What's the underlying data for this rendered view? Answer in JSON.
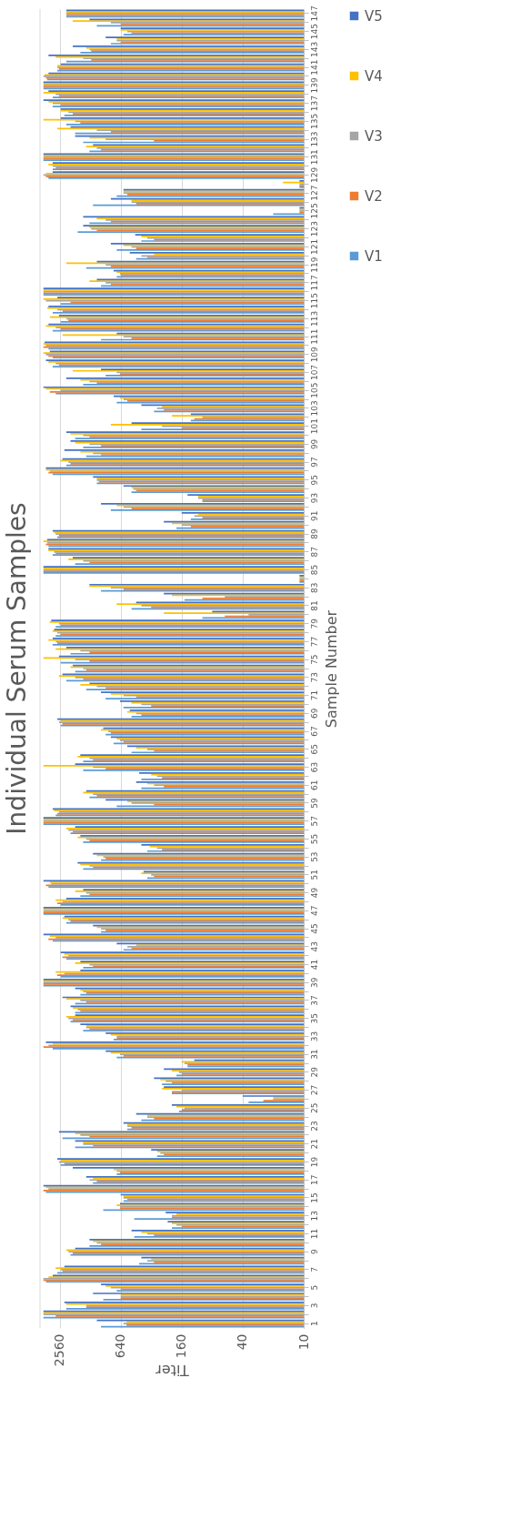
{
  "chart_data": {
    "type": "bar",
    "orientation": "horizontal",
    "title": "Individual Serum Samples",
    "xlabel": "Titer",
    "ylabel": "Sample Number",
    "categories": [
      "147",
      null,
      "145",
      null,
      "143",
      null,
      "141",
      null,
      "139",
      null,
      "137",
      null,
      "135",
      null,
      "133",
      null,
      "131",
      null,
      "129",
      null,
      "127",
      null,
      "125",
      null,
      "123",
      null,
      "121",
      null,
      "119",
      null,
      "117",
      null,
      "115",
      null,
      "113",
      null,
      "111",
      null,
      "109",
      null,
      "107",
      null,
      "105",
      null,
      "103",
      null,
      "101",
      null,
      "99",
      null,
      "97",
      null,
      "95",
      null,
      "93",
      null,
      "91",
      null,
      "89",
      null,
      "87",
      null,
      "85",
      null,
      "83",
      null,
      "81",
      null,
      "79",
      null,
      "77",
      null,
      "75",
      null,
      "73",
      null,
      "71",
      null,
      "69",
      null,
      "67",
      null,
      "65",
      null,
      "63",
      null,
      "61",
      null,
      "59",
      null,
      "57",
      null,
      "55",
      null,
      "53",
      null,
      "51",
      null,
      "49",
      null,
      "47",
      null,
      "45",
      null,
      "43",
      null,
      "41",
      null,
      "39",
      null,
      "37",
      null,
      "35",
      null,
      "33",
      null,
      "31",
      null,
      "29",
      null,
      "27",
      null,
      "25",
      null,
      "23",
      null,
      "21",
      null,
      "19",
      null,
      "17",
      null,
      "15",
      null,
      "13",
      null,
      "11",
      null,
      "9",
      null,
      "7",
      null,
      "5",
      null,
      "3",
      null,
      "1"
    ],
    "series": [
      {
        "name": "V1",
        "color": "#5b9bd5",
        "values": [
          2200,
          1100,
          600,
          800,
          1600,
          2200,
          2700,
          3400,
          3700,
          3000,
          3000,
          2300,
          2200,
          1800,
          1500,
          1300,
          3700,
          3000,
          3300,
          11,
          700,
          1200,
          20,
          1300,
          1700,
          400,
          700,
          450,
          1400,
          700,
          1000,
          3700,
          2500,
          3000,
          2500,
          3000,
          1000,
          3300,
          3000,
          3000,
          900,
          1500,
          2800,
          700,
          300,
          130,
          400,
          1800,
          1500,
          1400,
          2200,
          3000,
          1100,
          500,
          100,
          800,
          130,
          180,
          2700,
          3300,
          3000,
          1800,
          3700,
          11,
          1000,
          150,
          500,
          100,
          2800,
          2800,
          3000,
          2000,
          2500,
          1800,
          2200,
          1400,
          900,
          600,
          500,
          2500,
          900,
          750,
          500,
          1500,
          1500,
          400,
          400,
          1300,
          700,
          2800,
          3700,
          2000,
          1500,
          350,
          1000,
          1500,
          350,
          3300,
          1600,
          2500,
          3700,
          2200,
          1000,
          3000,
          600,
          2200,
          1500,
          2500,
          3700,
          1600,
          1800,
          1800,
          2000,
          1500,
          750,
          3000,
          700,
          140,
          180,
          250,
          200,
          35,
          170,
          400,
          550,
          2400,
          1800,
          280,
          2500,
          700,
          1200,
          3500,
          600,
          950,
          470,
          200,
          470,
          1300,
          2000,
          420,
          2700,
          3500,
          700,
          950,
          2200,
          3700,
          1000
        ]
      },
      {
        "name": "V2",
        "color": "#ed7d31",
        "values": [
          2200,
          640,
          500,
          640,
          1250,
          1250,
          2600,
          3500,
          3700,
          2600,
          2500,
          1900,
          1600,
          800,
          300,
          1000,
          3700,
          2800,
          3500,
          11,
          550,
          450,
          11,
          800,
          1100,
          300,
          450,
          350,
          800,
          640,
          800,
          3700,
          2000,
          2400,
          2100,
          2500,
          500,
          3700,
          3300,
          2600,
          650,
          1100,
          3200,
          550,
          240,
          120,
          160,
          1300,
          1000,
          1000,
          2000,
          3300,
          1050,
          450,
          100,
          500,
          100,
          130,
          2600,
          3500,
          2800,
          1300,
          3700,
          11,
          600,
          100,
          320,
          60,
          2500,
          2500,
          2700,
          1300,
          1300,
          1400,
          1500,
          900,
          450,
          320,
          400,
          2400,
          800,
          600,
          300,
          1200,
          900,
          250,
          240,
          1100,
          300,
          2700,
          3700,
          1900,
          1300,
          250,
          900,
          1200,
          300,
          3500,
          1300,
          2700,
          3700,
          2000,
          900,
          3300,
          500,
          2400,
          1200,
          2700,
          3700,
          1400,
          1400,
          1600,
          1900,
          1300,
          700,
          3700,
          600,
          140,
          160,
          200,
          200,
          25,
          160,
          300,
          500,
          1300,
          1200,
          240,
          2300,
          650,
          1100,
          3700,
          550,
          650,
          200,
          160,
          300,
          1000,
          1900,
          300,
          2400,
          3700,
          640,
          640,
          1400,
          2800,
          560
        ]
      },
      {
        "name": "V3",
        "color": "#a5a5a5",
        "values": [
          2200,
          800,
          550,
          700,
          1300,
          1500,
          2700,
          3700,
          3700,
          2800,
          3000,
          2100,
          1800,
          1100,
          900,
          1100,
          3700,
          3000,
          3700,
          11,
          600,
          500,
          11,
          900,
          1250,
          350,
          500,
          400,
          900,
          650,
          900,
          3700,
          3500,
          2700,
          2200,
          2800,
          600,
          3500,
          3500,
          2800,
          700,
          1300,
          2500,
          600,
          280,
          100,
          250,
          1500,
          1300,
          1200,
          2100,
          3200,
          1100,
          480,
          110,
          600,
          120,
          160,
          2800,
          3400,
          2900,
          1500,
          3700,
          11,
          800,
          60,
          400,
          35,
          2600,
          2700,
          2800,
          1600,
          1800,
          1500,
          1800,
          1100,
          600,
          400,
          450,
          2600,
          850,
          650,
          350,
          1300,
          1200,
          280,
          300,
          1200,
          500,
          2600,
          3700,
          2100,
          1400,
          280,
          950,
          1300,
          320,
          3100,
          1400,
          2400,
          3700,
          2100,
          1000,
          2800,
          550,
          2100,
          1300,
          2300,
          3700,
          1500,
          1600,
          1700,
          2100,
          1400,
          700,
          3300,
          650,
          150,
          170,
          230,
          160,
          20,
          150,
          350,
          550,
          1600,
          1500,
          260,
          2600,
          700,
          1300,
          3300,
          600,
          650,
          200,
          180,
          350,
          1100,
          2100,
          350,
          2500,
          3700,
          800,
          640,
          1400,
          3700,
          600
        ]
      },
      {
        "name": "V4",
        "color": "#ffc000",
        "values": [
          2200,
          1900,
          640,
          700,
          1400,
          2800,
          2700,
          3600,
          3700,
          3700,
          3300,
          2500,
          3700,
          2700,
          1300,
          1400,
          3700,
          3300,
          3500,
          16,
          600,
          500,
          11,
          1100,
          1300,
          400,
          600,
          300,
          2200,
          700,
          1300,
          3700,
          3700,
          3400,
          3200,
          3500,
          2400,
          3700,
          3700,
          3300,
          1900,
          1600,
          3500,
          650,
          250,
          200,
          800,
          2000,
          1800,
          1600,
          2500,
          3500,
          1100,
          500,
          110,
          700,
          110,
          200,
          2900,
          3700,
          3300,
          2100,
          3700,
          11,
          1300,
          200,
          700,
          240,
          3200,
          3000,
          3300,
          2800,
          3700,
          2000,
          2600,
          1600,
          800,
          500,
          550,
          2500,
          1000,
          700,
          450,
          1700,
          3700,
          320,
          350,
          1500,
          550,
          2900,
          3700,
          2200,
          1700,
          330,
          1100,
          1600,
          400,
          3200,
          1800,
          2800,
          3700,
          2400,
          1100,
          3200,
          450,
          2300,
          1800,
          2800,
          3700,
          1600,
          2200,
          1900,
          2200,
          1400,
          800,
          3000,
          800,
          160,
          200,
          260,
          250,
          20,
          180,
          350,
          550,
          1800,
          1500,
          280,
          2500,
          750,
          1200,
          3500,
          600,
          700,
          180,
          200,
          400,
          1200,
          2200,
          320,
          2800,
          3300,
          900,
          640,
          2200,
          3700,
          560
        ]
      },
      {
        "name": "V5",
        "color": "#4472c4",
        "values": [
          2200,
          1300,
          640,
          900,
          1900,
          3300,
          2500,
          3300,
          3700,
          3300,
          3700,
          2500,
          2500,
          2000,
          1800,
          1200,
          3700,
          3000,
          3000,
          11,
          600,
          800,
          11,
          1500,
          1500,
          460,
          800,
          520,
          1100,
          750,
          1100,
          3700,
          2700,
          3300,
          2600,
          3300,
          700,
          3600,
          3200,
          3500,
          1000,
          2200,
          3700,
          750,
          400,
          130,
          500,
          2200,
          2000,
          2300,
          2400,
          3500,
          1200,
          600,
          140,
          1000,
          160,
          240,
          3000,
          3400,
          3300,
          1900,
          3700,
          11,
          1300,
          240,
          450,
          80,
          3100,
          2900,
          3000,
          2200,
          2600,
          1900,
          2400,
          1300,
          1000,
          650,
          520,
          2700,
          950,
          800,
          550,
          1600,
          1800,
          420,
          450,
          1400,
          900,
          3000,
          3700,
          1800,
          1600,
          400,
          1200,
          1700,
          380,
          3700,
          1500,
          2200,
          3700,
          2300,
          1200,
          3700,
          700,
          2500,
          1600,
          1600,
          3700,
          1800,
          2400,
          2000,
          1800,
          1600,
          900,
          3500,
          900,
          120,
          240,
          300,
          240,
          40,
          200,
          450,
          600,
          2600,
          1800,
          320,
          2700,
          1900,
          1400,
          3700,
          640,
          650,
          230,
          220,
          500,
          1300,
          1800,
          400,
          2300,
          3000,
          1000,
          1200,
          2300,
          3700,
          1100
        ]
      }
    ],
    "xlim": [
      4000,
      10
    ],
    "xticks": [
      2560,
      640,
      160,
      40,
      10
    ],
    "log": "x",
    "grid": "x",
    "legend": "right"
  }
}
